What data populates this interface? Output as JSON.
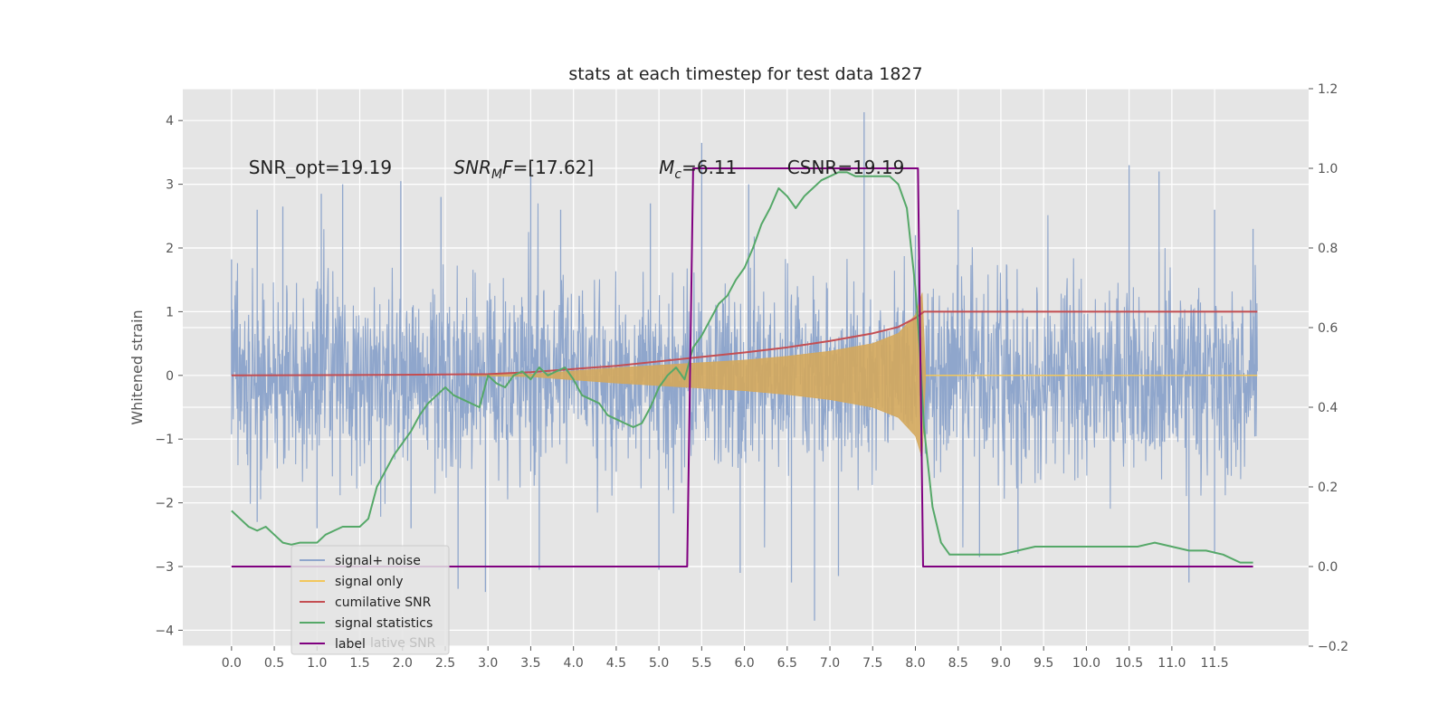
{
  "chart_data": {
    "type": "line",
    "title": "stats at each timestep for test data 1827",
    "ylabel": "Whitened strain",
    "xlim": [
      -0.57,
      12.6
    ],
    "ylim": [
      -4.25,
      4.5
    ],
    "y2lim": [
      -0.2,
      1.2
    ],
    "grid": true,
    "x_ticks": [
      "0.0",
      "0.5",
      "1.0",
      "1.5",
      "2.0",
      "2.5",
      "3.0",
      "3.5",
      "4.0",
      "4.5",
      "5.0",
      "5.5",
      "6.0",
      "6.5",
      "7.0",
      "7.5",
      "8.0",
      "8.5",
      "9.0",
      "9.5",
      "10.0",
      "10.5",
      "11.0",
      "11.5"
    ],
    "y_ticks": [
      "4",
      "3",
      "2",
      "1",
      "0",
      "−1",
      "−2",
      "−3",
      "−4"
    ],
    "y2_ticks": [
      "1.2",
      "1.0",
      "0.8",
      "0.6",
      "0.4",
      "0.2",
      "0.0",
      "−0.2"
    ],
    "annotations": [
      {
        "text": "SNR_opt=19.19",
        "x": 0.2,
        "y": 3.25
      },
      {
        "text": "SNR",
        "sub": "M",
        "suffix": "F=[17.62]",
        "italic": true,
        "x": 2.6,
        "y": 3.25
      },
      {
        "text": "M",
        "sub": "c",
        "suffix": "=6.11",
        "italic": true,
        "x": 5.0,
        "y": 3.25
      },
      {
        "text": "CSNR=19.19",
        "x": 6.5,
        "y": 3.25
      }
    ],
    "legend": {
      "placement": "lower-left",
      "entries": [
        {
          "label": "signal+ noise",
          "color": "#8fa6cc"
        },
        {
          "label": "signal only",
          "color": "#f2c75c"
        },
        {
          "label": "cumilative SNR",
          "color": "#c44e52"
        },
        {
          "label": "signal statistics",
          "color": "#55a868"
        },
        {
          "label": "label",
          "color": "#800080"
        }
      ],
      "ghost_text": "lative SNR"
    },
    "series": [
      {
        "name": "signal+ noise",
        "color": "#8fa6cc",
        "style": "noise",
        "x_range": [
          0.0,
          12.0
        ],
        "band_sigma": 0.75,
        "peaks_up": [
          [
            0.0,
            1.82
          ],
          [
            0.3,
            2.6
          ],
          [
            0.6,
            2.65
          ],
          [
            1.05,
            2.85
          ],
          [
            1.3,
            3.0
          ],
          [
            1.98,
            3.05
          ],
          [
            2.45,
            2.8
          ],
          [
            3.5,
            3.27
          ],
          [
            3.85,
            2.6
          ],
          [
            4.9,
            2.7
          ],
          [
            5.5,
            3.65
          ],
          [
            6.05,
            3.0
          ],
          [
            7.4,
            4.13
          ],
          [
            8.0,
            2.2
          ],
          [
            8.5,
            2.6
          ],
          [
            10.5,
            3.3
          ],
          [
            10.85,
            3.2
          ],
          [
            11.5,
            2.6
          ],
          [
            11.95,
            2.3
          ]
        ],
        "peaks_down": [
          [
            0.3,
            -2.3
          ],
          [
            1.0,
            -2.4
          ],
          [
            2.1,
            -2.4
          ],
          [
            2.65,
            -3.35
          ],
          [
            2.97,
            -3.4
          ],
          [
            3.6,
            -3.05
          ],
          [
            5.0,
            -3.05
          ],
          [
            5.95,
            -3.1
          ],
          [
            6.55,
            -3.25
          ],
          [
            6.82,
            -3.85
          ],
          [
            7.1,
            -3.15
          ],
          [
            8.75,
            -2.85
          ],
          [
            9.2,
            -2.8
          ],
          [
            11.2,
            -3.25
          ],
          [
            11.5,
            -2.8
          ]
        ]
      },
      {
        "name": "signal only",
        "color": "#f2c75c",
        "fill": "#d4a85c",
        "style": "chirp",
        "x_range": [
          0.0,
          12.0
        ],
        "envelope": [
          [
            3.5,
            0.02
          ],
          [
            4.0,
            0.07
          ],
          [
            4.5,
            0.12
          ],
          [
            5.0,
            0.16
          ],
          [
            5.5,
            0.2
          ],
          [
            6.0,
            0.24
          ],
          [
            6.5,
            0.3
          ],
          [
            7.0,
            0.38
          ],
          [
            7.5,
            0.5
          ],
          [
            7.8,
            0.66
          ],
          [
            8.0,
            0.95
          ],
          [
            8.08,
            1.3
          ],
          [
            8.12,
            0.0
          ]
        ]
      },
      {
        "name": "cumilative SNR",
        "color": "#c44e52",
        "x": [
          0,
          1,
          2,
          3,
          3.5,
          4,
          4.5,
          5,
          5.5,
          6,
          6.5,
          7,
          7.5,
          7.8,
          8.0,
          8.08,
          8.1,
          12.0
        ],
        "y": [
          0,
          0.005,
          0.01,
          0.02,
          0.05,
          0.1,
          0.15,
          0.22,
          0.29,
          0.36,
          0.44,
          0.54,
          0.66,
          0.76,
          0.9,
          0.98,
          1.0,
          1.0
        ]
      },
      {
        "name": "signal statistics",
        "color": "#55a868",
        "axis": "right",
        "x": [
          0,
          0.1,
          0.2,
          0.3,
          0.4,
          0.5,
          0.6,
          0.7,
          0.8,
          0.9,
          1.0,
          1.1,
          1.2,
          1.3,
          1.4,
          1.5,
          1.6,
          1.7,
          1.8,
          1.9,
          2.0,
          2.1,
          2.2,
          2.3,
          2.4,
          2.5,
          2.6,
          2.7,
          2.8,
          2.9,
          3.0,
          3.1,
          3.2,
          3.3,
          3.4,
          3.5,
          3.6,
          3.7,
          3.8,
          3.9,
          4.0,
          4.1,
          4.2,
          4.3,
          4.4,
          4.5,
          4.6,
          4.7,
          4.8,
          4.9,
          5.0,
          5.1,
          5.2,
          5.3,
          5.4,
          5.5,
          5.6,
          5.7,
          5.8,
          5.9,
          6.0,
          6.1,
          6.2,
          6.3,
          6.4,
          6.5,
          6.6,
          6.7,
          6.8,
          6.9,
          7.0,
          7.1,
          7.2,
          7.3,
          7.4,
          7.5,
          7.6,
          7.7,
          7.8,
          7.9,
          8.0,
          8.05,
          8.1,
          8.2,
          8.3,
          8.4,
          8.5,
          8.6,
          8.7,
          8.8,
          8.9,
          9.0,
          9.2,
          9.4,
          9.6,
          9.8,
          10.0,
          10.2,
          10.4,
          10.6,
          10.8,
          11.0,
          11.2,
          11.4,
          11.6,
          11.8,
          11.95
        ],
        "y": [
          0.14,
          0.12,
          0.1,
          0.09,
          0.1,
          0.08,
          0.06,
          0.055,
          0.06,
          0.06,
          0.06,
          0.08,
          0.09,
          0.1,
          0.1,
          0.1,
          0.12,
          0.2,
          0.24,
          0.28,
          0.31,
          0.34,
          0.38,
          0.41,
          0.43,
          0.45,
          0.43,
          0.42,
          0.41,
          0.4,
          0.48,
          0.46,
          0.45,
          0.48,
          0.49,
          0.47,
          0.5,
          0.48,
          0.49,
          0.5,
          0.47,
          0.43,
          0.42,
          0.41,
          0.38,
          0.37,
          0.36,
          0.35,
          0.36,
          0.4,
          0.45,
          0.48,
          0.5,
          0.47,
          0.55,
          0.58,
          0.62,
          0.66,
          0.68,
          0.72,
          0.75,
          0.8,
          0.86,
          0.9,
          0.95,
          0.93,
          0.9,
          0.93,
          0.95,
          0.97,
          0.98,
          0.99,
          0.99,
          0.98,
          0.98,
          0.98,
          0.98,
          0.98,
          0.96,
          0.9,
          0.7,
          0.55,
          0.35,
          0.15,
          0.06,
          0.03,
          0.03,
          0.03,
          0.03,
          0.03,
          0.03,
          0.03,
          0.04,
          0.05,
          0.05,
          0.05,
          0.05,
          0.05,
          0.05,
          0.05,
          0.06,
          0.05,
          0.04,
          0.04,
          0.03,
          0.01,
          0.01
        ]
      },
      {
        "name": "label",
        "color": "#800080",
        "axis": "right",
        "x": [
          0.0,
          5.33,
          5.4,
          8.03,
          8.09,
          11.95
        ],
        "y": [
          0.0,
          0.0,
          1.0,
          1.0,
          0.0,
          0.0
        ]
      }
    ]
  }
}
